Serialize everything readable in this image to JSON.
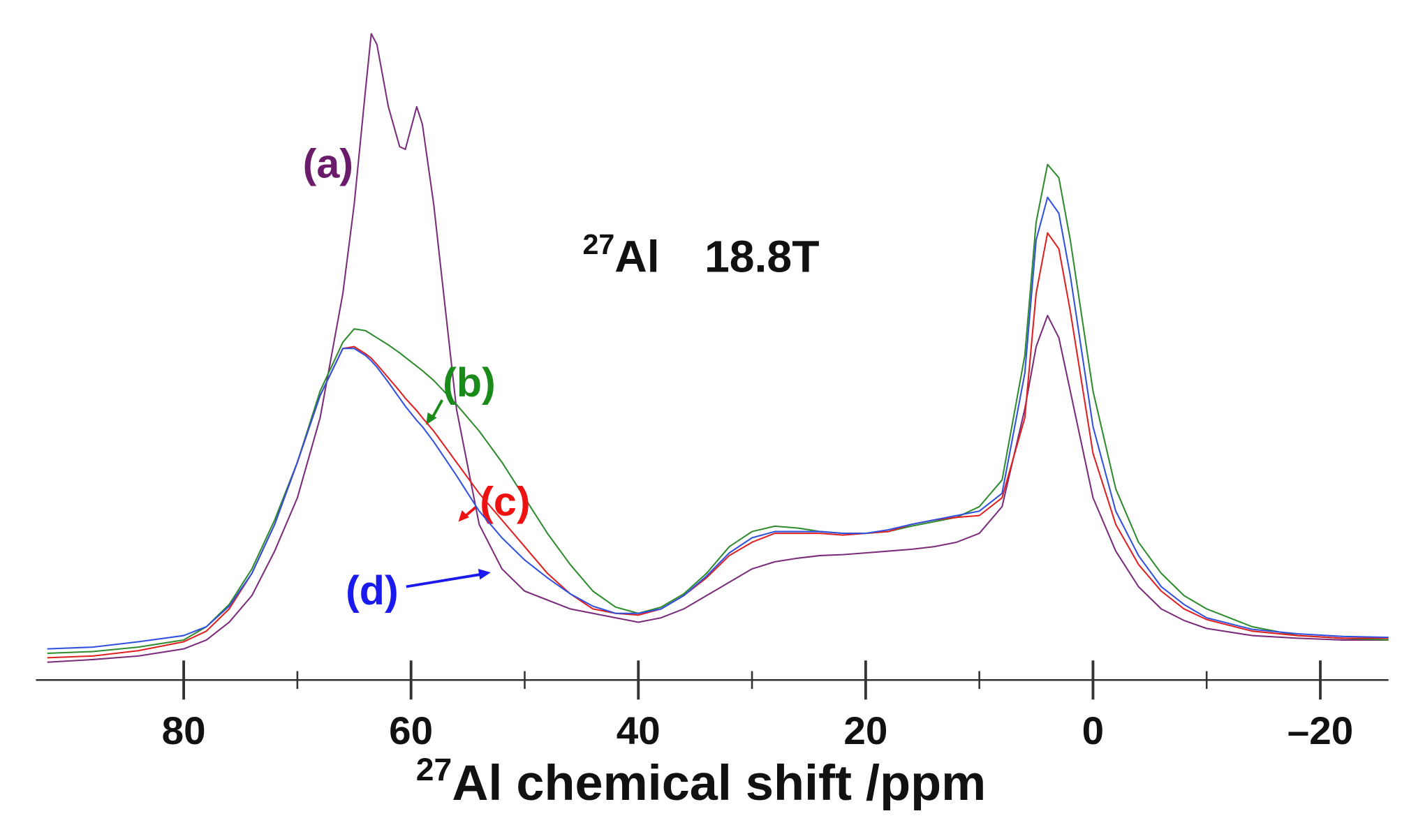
{
  "chart_data": {
    "type": "line",
    "field": {
      "nucleus_mass": "27",
      "nucleus": "Al",
      "strength": "18.8T"
    },
    "xlabel": {
      "superscript": "27",
      "text": "Al chemical shift /ppm"
    },
    "xlim": [
      93,
      -26
    ],
    "xticks": [
      80,
      60,
      40,
      20,
      0,
      {
        "value": -20,
        "label": "–20"
      }
    ],
    "xminorticks": [
      70,
      50,
      30,
      10,
      -10
    ],
    "ylim": [
      0,
      735
    ],
    "x": [
      92,
      88,
      84,
      80,
      78,
      76,
      74,
      72,
      70,
      68,
      66,
      65,
      64,
      63.5,
      63,
      62,
      61,
      60.5,
      59.5,
      59,
      58,
      56,
      54,
      52,
      50,
      48,
      46,
      44,
      42,
      40,
      38,
      36,
      34,
      32,
      30,
      28,
      26,
      24,
      22,
      20,
      18,
      16,
      14,
      12,
      10,
      8,
      6,
      5,
      4,
      3,
      2,
      0,
      -2,
      -4,
      -6,
      -8,
      -10,
      -14,
      -18,
      -22,
      -26
    ],
    "series": [
      {
        "name": "(a)",
        "color": "#7a2c7a",
        "label_color": "#6a1b6a",
        "values": [
          20,
          23,
          27,
          35,
          45,
          65,
          95,
          145,
          205,
          295,
          435,
          535,
          665,
          727,
          715,
          645,
          600,
          597,
          645,
          625,
          535,
          305,
          175,
          125,
          100,
          90,
          80,
          75,
          70,
          65,
          70,
          80,
          95,
          110,
          125,
          133,
          137,
          140,
          141,
          143,
          145,
          147,
          150,
          155,
          165,
          195,
          305,
          375,
          410,
          385,
          325,
          205,
          145,
          105,
          80,
          67,
          58,
          50,
          47,
          45,
          45
        ]
      },
      {
        "name": "(b)",
        "color": "#2e8b2e",
        "label_color": "#1a8a1a",
        "values": [
          30,
          32,
          37,
          45,
          60,
          85,
          125,
          180,
          245,
          325,
          380,
          395,
          393,
          389,
          385,
          377,
          368,
          363,
          353,
          348,
          337,
          310,
          280,
          245,
          205,
          165,
          130,
          100,
          82,
          75,
          82,
          97,
          120,
          150,
          167,
          173,
          171,
          167,
          165,
          165,
          167,
          173,
          178,
          183,
          195,
          225,
          365,
          515,
          580,
          565,
          495,
          325,
          215,
          155,
          120,
          95,
          80,
          60,
          50,
          47,
          45
        ]
      },
      {
        "name": "(c)",
        "color": "#e02020",
        "label_color": "#ee1111",
        "values": [
          25,
          27,
          33,
          43,
          55,
          80,
          120,
          175,
          245,
          320,
          373,
          375,
          367,
          362,
          355,
          340,
          325,
          317,
          303,
          295,
          280,
          245,
          210,
          180,
          150,
          120,
          97,
          80,
          75,
          73,
          80,
          95,
          115,
          140,
          155,
          165,
          165,
          165,
          163,
          165,
          167,
          175,
          180,
          183,
          185,
          205,
          295,
          435,
          503,
          485,
          415,
          255,
          175,
          130,
          100,
          80,
          68,
          55,
          50,
          47,
          47
        ]
      },
      {
        "name": "(d)",
        "color": "#3050e0",
        "label_color": "#1a1aee",
        "values": [
          35,
          37,
          43,
          50,
          60,
          83,
          120,
          175,
          245,
          320,
          373,
          373,
          365,
          359,
          352,
          335,
          317,
          308,
          292,
          285,
          268,
          230,
          190,
          160,
          135,
          115,
          97,
          83,
          75,
          75,
          80,
          95,
          117,
          143,
          160,
          167,
          167,
          167,
          165,
          165,
          169,
          175,
          180,
          185,
          190,
          210,
          345,
          495,
          543,
          525,
          455,
          285,
          190,
          140,
          105,
          85,
          70,
          57,
          52,
          49,
          48
        ]
      }
    ]
  }
}
